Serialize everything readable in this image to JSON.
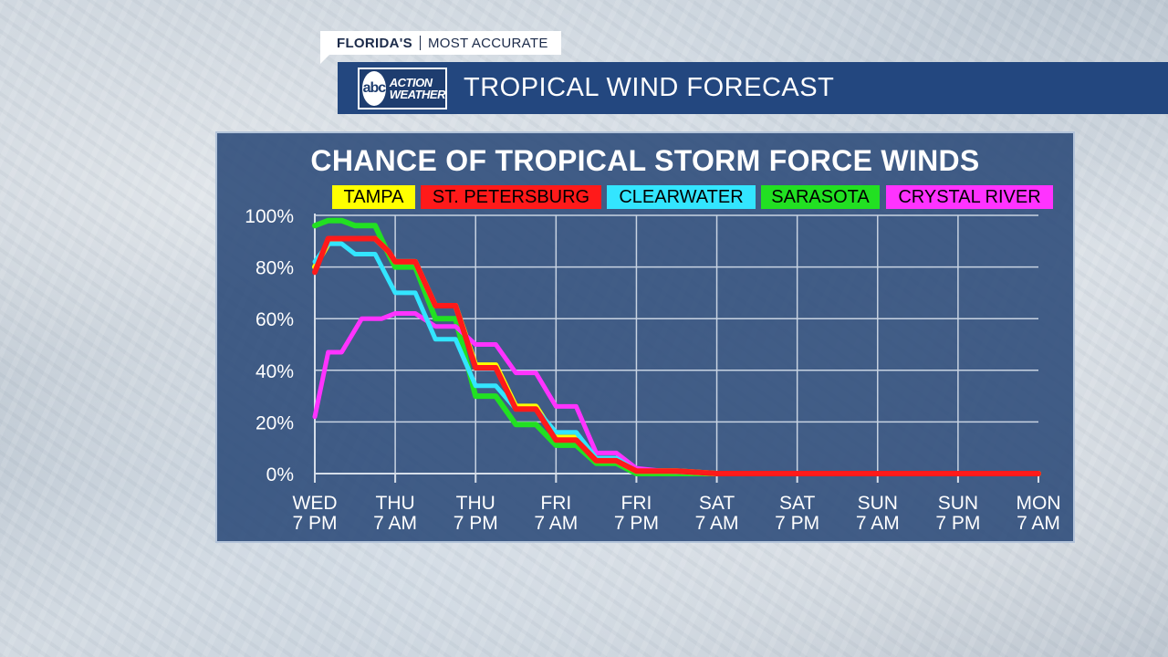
{
  "header": {
    "brand_part1": "FLORIDA'S",
    "brand_part2": "MOST ACCURATE",
    "logo_text_abc": "abc",
    "logo_text_line1": "ACTION",
    "logo_text_line2": "WEATHER",
    "title": "TROPICAL WIND FORECAST"
  },
  "colors": {
    "panel": "#264676",
    "title_bar": "#23477f",
    "Tampa": "#ffff00",
    "St. Petersburg": "#ff1a1a",
    "Clearwater": "#33e5ff",
    "Sarasota": "#22e022",
    "Crystal River": "#ff33ff"
  },
  "chart_data": {
    "type": "line",
    "title": "CHANCE OF TROPICAL STORM FORCE WINDS",
    "xlabel": "",
    "ylabel": "",
    "ylim": [
      0,
      100
    ],
    "y_ticks": [
      "0%",
      "20%",
      "40%",
      "60%",
      "80%",
      "100%"
    ],
    "y_tick_values": [
      0,
      20,
      40,
      60,
      80,
      100
    ],
    "x_ticks": [
      [
        "WED",
        "7 PM"
      ],
      [
        "THU",
        "7 AM"
      ],
      [
        "THU",
        "7 PM"
      ],
      [
        "FRI",
        "7 AM"
      ],
      [
        "FRI",
        "7 PM"
      ],
      [
        "SAT",
        "7 AM"
      ],
      [
        "SAT",
        "7 PM"
      ],
      [
        "SUN",
        "7 AM"
      ],
      [
        "SUN",
        "7 PM"
      ],
      [
        "MON",
        "7 AM"
      ]
    ],
    "x_hours": [
      0,
      12,
      24,
      36,
      48,
      60,
      72,
      84,
      96,
      108
    ],
    "grid": true,
    "legend_position": "top",
    "legend": [
      "TAMPA",
      "ST. PETERSBURG",
      "CLEARWATER",
      "SARASOTA",
      "CRYSTAL RIVER"
    ],
    "series": [
      {
        "name": "SARASOTA",
        "color": "#22e022",
        "points": [
          [
            0,
            96
          ],
          [
            1,
            97
          ],
          [
            2,
            98
          ],
          [
            4,
            98
          ],
          [
            6,
            96
          ],
          [
            9,
            96
          ],
          [
            11,
            85
          ],
          [
            12,
            80
          ],
          [
            13,
            80
          ],
          [
            15,
            80
          ],
          [
            18,
            60
          ],
          [
            21,
            60
          ],
          [
            24,
            30
          ],
          [
            27,
            30
          ],
          [
            30,
            19
          ],
          [
            33,
            19
          ],
          [
            36,
            11
          ],
          [
            39,
            11
          ],
          [
            42,
            4
          ],
          [
            45,
            4
          ],
          [
            48,
            0
          ],
          [
            54,
            0
          ],
          [
            108,
            0
          ]
        ]
      },
      {
        "name": "TAMPA",
        "color": "#ffff00",
        "points": [
          [
            0,
            80
          ],
          [
            2,
            89
          ],
          [
            4,
            91
          ],
          [
            6,
            91
          ],
          [
            9,
            91
          ],
          [
            11,
            86
          ],
          [
            12,
            82
          ],
          [
            13,
            82
          ],
          [
            15,
            82
          ],
          [
            18,
            65
          ],
          [
            21,
            65
          ],
          [
            24,
            42
          ],
          [
            27,
            42
          ],
          [
            30,
            26
          ],
          [
            33,
            26
          ],
          [
            36,
            14
          ],
          [
            39,
            14
          ],
          [
            42,
            5
          ],
          [
            45,
            5
          ],
          [
            48,
            1
          ],
          [
            54,
            1
          ],
          [
            60,
            0
          ],
          [
            108,
            0
          ]
        ]
      },
      {
        "name": "CRYSTAL RIVER",
        "color": "#ff33ff",
        "points": [
          [
            0,
            22
          ],
          [
            2,
            47
          ],
          [
            4,
            47
          ],
          [
            7,
            60
          ],
          [
            10,
            60
          ],
          [
            12,
            62
          ],
          [
            15,
            62
          ],
          [
            18,
            57
          ],
          [
            21,
            57
          ],
          [
            24,
            50
          ],
          [
            27,
            50
          ],
          [
            30,
            39
          ],
          [
            33,
            39
          ],
          [
            36,
            26
          ],
          [
            39,
            26
          ],
          [
            42,
            8
          ],
          [
            45,
            8
          ],
          [
            48,
            2
          ],
          [
            52,
            1
          ],
          [
            60,
            0
          ],
          [
            108,
            0
          ]
        ]
      },
      {
        "name": "CLEARWATER",
        "color": "#33e5ff",
        "points": [
          [
            0,
            82
          ],
          [
            2,
            89
          ],
          [
            4,
            89
          ],
          [
            6,
            85
          ],
          [
            9,
            85
          ],
          [
            12,
            70
          ],
          [
            15,
            70
          ],
          [
            18,
            52
          ],
          [
            21,
            52
          ],
          [
            24,
            34
          ],
          [
            27,
            34
          ],
          [
            30,
            25
          ],
          [
            33,
            25
          ],
          [
            36,
            16
          ],
          [
            39,
            16
          ],
          [
            42,
            6
          ],
          [
            45,
            6
          ],
          [
            48,
            1
          ],
          [
            54,
            1
          ],
          [
            60,
            0
          ],
          [
            108,
            0
          ]
        ]
      },
      {
        "name": "ST. PETERSBURG",
        "color": "#ff1a1a",
        "points": [
          [
            0,
            78
          ],
          [
            2,
            91
          ],
          [
            4,
            91
          ],
          [
            6,
            91
          ],
          [
            9,
            91
          ],
          [
            11,
            86
          ],
          [
            12,
            82
          ],
          [
            13,
            82
          ],
          [
            15,
            82
          ],
          [
            18,
            65
          ],
          [
            21,
            65
          ],
          [
            24,
            41
          ],
          [
            27,
            41
          ],
          [
            30,
            25
          ],
          [
            33,
            25
          ],
          [
            36,
            13
          ],
          [
            39,
            13
          ],
          [
            42,
            5
          ],
          [
            45,
            5
          ],
          [
            48,
            1
          ],
          [
            54,
            1
          ],
          [
            60,
            0
          ],
          [
            108,
            0
          ]
        ]
      }
    ]
  }
}
